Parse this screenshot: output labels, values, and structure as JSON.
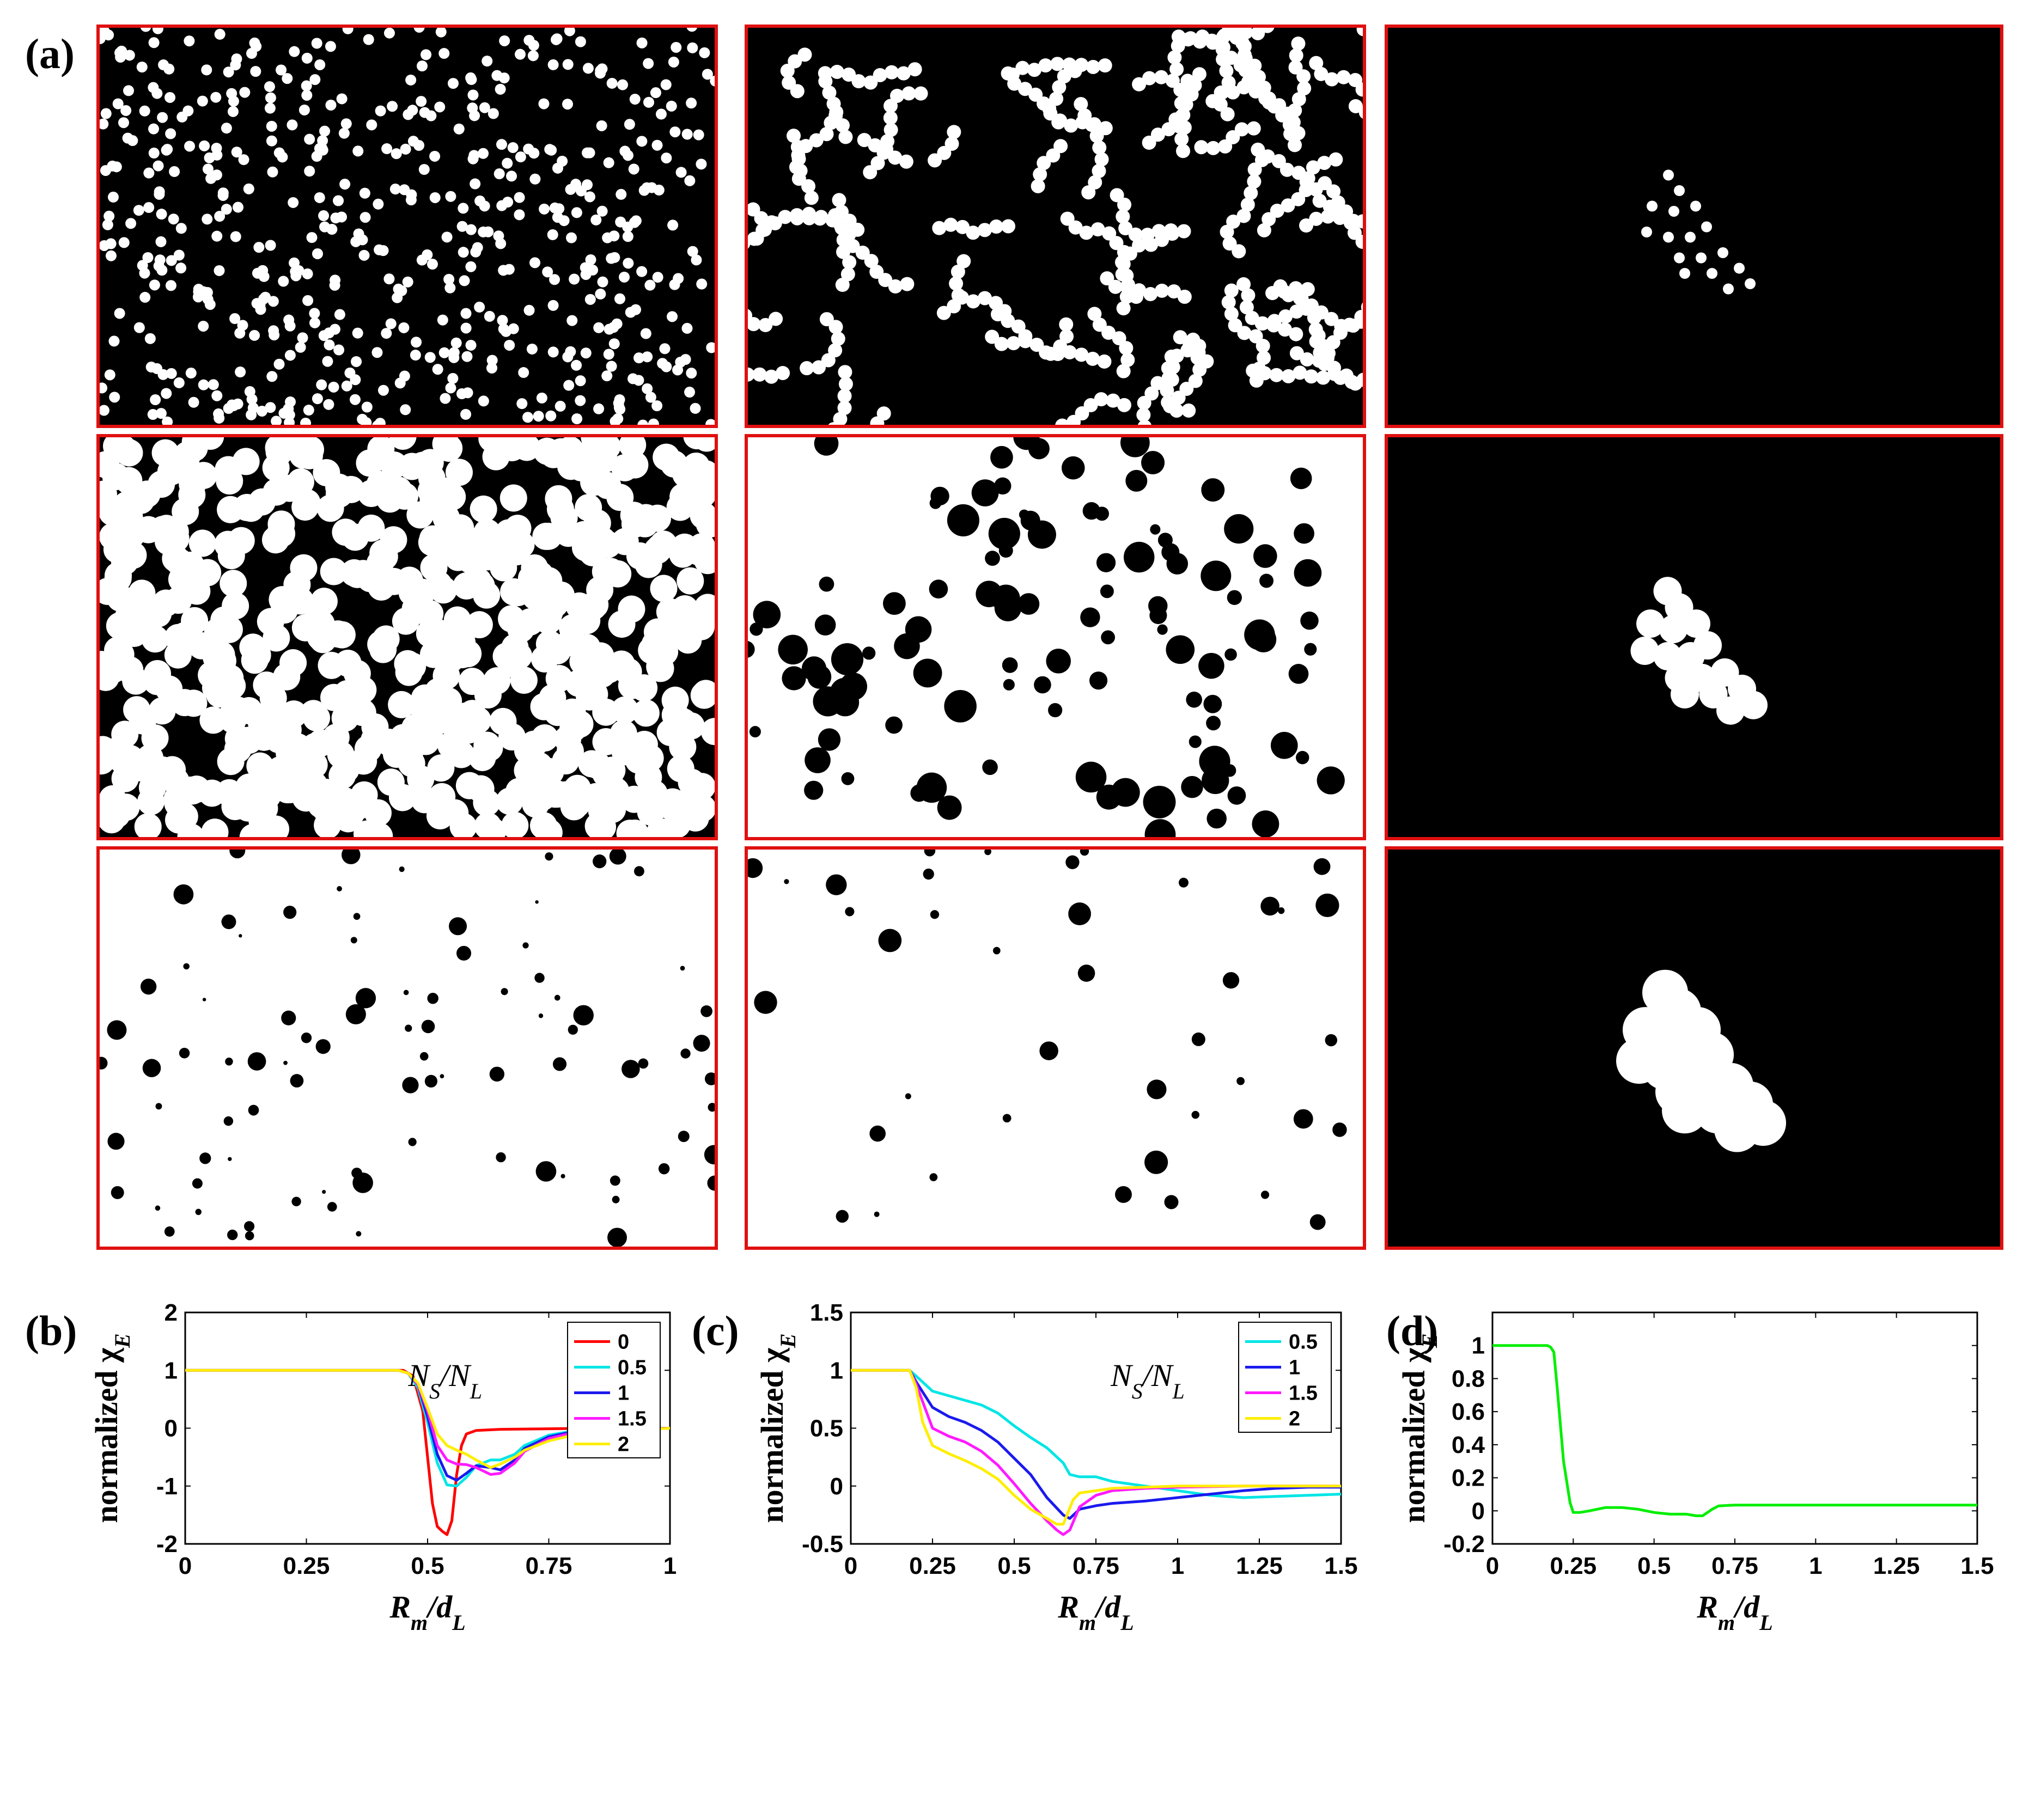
{
  "panel_labels": {
    "a": "(a)",
    "b": "(b)",
    "c": "(c)",
    "d": "(d)"
  },
  "image_grid": {
    "frame_color": "#e01010",
    "rows": 3,
    "cols": 3,
    "panels": [
      {
        "row": 0,
        "col": 0,
        "bg": "#000000",
        "fg": "#ffffff",
        "content": "sparse-dots",
        "seed": 11
      },
      {
        "row": 0,
        "col": 1,
        "bg": "#000000",
        "fg": "#ffffff",
        "content": "chains",
        "seed": 23
      },
      {
        "row": 0,
        "col": 2,
        "bg": "#000000",
        "fg": "#ffffff",
        "content": "cluster-small",
        "seed": 5
      },
      {
        "row": 1,
        "col": 0,
        "bg": "#000000",
        "fg": "#ffffff",
        "content": "dense-disks",
        "seed": 37
      },
      {
        "row": 1,
        "col": 1,
        "bg": "#000000",
        "fg": "#ffffff",
        "content": "merged-network",
        "seed": 41
      },
      {
        "row": 1,
        "col": 2,
        "bg": "#000000",
        "fg": "#ffffff",
        "content": "cluster-medium",
        "seed": 5
      },
      {
        "row": 2,
        "col": 0,
        "bg": "#ffffff",
        "fg": "#000000",
        "content": "sparse-holes-many",
        "seed": 53
      },
      {
        "row": 2,
        "col": 1,
        "bg": "#ffffff",
        "fg": "#000000",
        "content": "sparse-holes-few",
        "seed": 67
      },
      {
        "row": 2,
        "col": 2,
        "bg": "#000000",
        "fg": "#ffffff",
        "content": "cluster-large",
        "seed": 5
      }
    ]
  },
  "chart_data": [
    {
      "id": "b",
      "type": "line",
      "xlabel_main": "R",
      "xlabel_sub1": "m",
      "xlabel_sep": "/d",
      "xlabel_sub2": "L",
      "ylabel_main": "normalized χ",
      "ylabel_sub": "E",
      "annotation": "N_S/N_L",
      "annotation_parts": {
        "a": "N",
        "as": "S",
        "sep": "/N",
        "bs": "L"
      },
      "xlim": [
        0,
        1
      ],
      "ylim": [
        -2,
        2
      ],
      "xticks": [
        "0",
        "0.25",
        "0.5",
        "0.75",
        "1"
      ],
      "xtick_values": [
        0,
        0.25,
        0.5,
        0.75,
        1
      ],
      "yticks": [
        "-2",
        "-1",
        "0",
        "1",
        "2"
      ],
      "ytick_values": [
        -2,
        -1,
        0,
        1,
        2
      ],
      "legend_position": "top-right",
      "series": [
        {
          "name": "0",
          "color": "#ff0000",
          "x": [
            0,
            0.45,
            0.47,
            0.49,
            0.5,
            0.51,
            0.52,
            0.53,
            0.54,
            0.55,
            0.56,
            0.57,
            0.58,
            0.6,
            0.65,
            0.75,
            0.85,
            1.0
          ],
          "y": [
            1,
            1,
            0.9,
            0.3,
            -0.5,
            -1.3,
            -1.7,
            -1.78,
            -1.84,
            -1.6,
            -0.8,
            -0.3,
            -0.1,
            -0.04,
            -0.02,
            -0.01,
            0,
            0
          ]
        },
        {
          "name": "0.5",
          "color": "#00e5e5",
          "x": [
            0,
            0.44,
            0.46,
            0.48,
            0.5,
            0.52,
            0.54,
            0.56,
            0.58,
            0.6,
            0.63,
            0.65,
            0.68,
            0.7,
            0.75,
            0.8,
            0.9,
            1.0
          ],
          "y": [
            1,
            1,
            0.95,
            0.7,
            0.1,
            -0.6,
            -0.98,
            -1.0,
            -0.85,
            -0.65,
            -0.55,
            -0.55,
            -0.45,
            -0.3,
            -0.12,
            -0.05,
            -0.01,
            0
          ]
        },
        {
          "name": "1",
          "color": "#1a1aee",
          "x": [
            0,
            0.44,
            0.46,
            0.48,
            0.5,
            0.52,
            0.54,
            0.56,
            0.58,
            0.6,
            0.63,
            0.65,
            0.68,
            0.7,
            0.75,
            0.8,
            0.9,
            1.0
          ],
          "y": [
            1,
            1,
            0.95,
            0.75,
            0.2,
            -0.45,
            -0.82,
            -0.9,
            -0.78,
            -0.65,
            -0.68,
            -0.72,
            -0.55,
            -0.35,
            -0.15,
            -0.06,
            -0.01,
            0
          ]
        },
        {
          "name": "1.5",
          "color": "#ff1aff",
          "x": [
            0,
            0.44,
            0.46,
            0.48,
            0.5,
            0.52,
            0.54,
            0.56,
            0.58,
            0.6,
            0.63,
            0.65,
            0.68,
            0.7,
            0.75,
            0.8,
            0.9,
            1.0
          ],
          "y": [
            1,
            1,
            0.95,
            0.75,
            0.3,
            -0.3,
            -0.55,
            -0.62,
            -0.63,
            -0.68,
            -0.8,
            -0.78,
            -0.6,
            -0.4,
            -0.18,
            -0.08,
            -0.02,
            0
          ]
        },
        {
          "name": "2",
          "color": "#ffee00",
          "x": [
            0,
            0.44,
            0.46,
            0.48,
            0.5,
            0.52,
            0.54,
            0.56,
            0.58,
            0.6,
            0.63,
            0.65,
            0.68,
            0.7,
            0.75,
            0.8,
            0.9,
            1.0
          ],
          "y": [
            1,
            1,
            0.95,
            0.78,
            0.35,
            -0.1,
            -0.3,
            -0.38,
            -0.45,
            -0.55,
            -0.68,
            -0.62,
            -0.5,
            -0.38,
            -0.22,
            -0.12,
            -0.04,
            0
          ]
        }
      ]
    },
    {
      "id": "c",
      "type": "line",
      "xlabel_main": "R",
      "xlabel_sub1": "m",
      "xlabel_sep": "/d",
      "xlabel_sub2": "L",
      "ylabel_main": "normalized χ",
      "ylabel_sub": "E",
      "annotation": "N_S/N_L",
      "annotation_parts": {
        "a": "N",
        "as": "S",
        "sep": "/N",
        "bs": "L"
      },
      "xlim": [
        0,
        1.5
      ],
      "ylim": [
        -0.5,
        1.5
      ],
      "xticks": [
        "0",
        "0.25",
        "0.5",
        "0.75",
        "1",
        "1.25",
        "1.5"
      ],
      "xtick_values": [
        0,
        0.25,
        0.5,
        0.75,
        1,
        1.25,
        1.5
      ],
      "yticks": [
        "-0.5",
        "0",
        "0.5",
        "1",
        "1.5"
      ],
      "ytick_values": [
        -0.5,
        0,
        0.5,
        1,
        1.5
      ],
      "legend_position": "top-right",
      "series": [
        {
          "name": "0.5",
          "color": "#00e5e5",
          "x": [
            0,
            0.18,
            0.2,
            0.25,
            0.3,
            0.4,
            0.45,
            0.5,
            0.55,
            0.6,
            0.65,
            0.67,
            0.7,
            0.75,
            0.8,
            0.9,
            1.0,
            1.1,
            1.2,
            1.3,
            1.4,
            1.5
          ],
          "y": [
            1,
            1,
            0.95,
            0.82,
            0.78,
            0.7,
            0.63,
            0.52,
            0.42,
            0.33,
            0.2,
            0.1,
            0.08,
            0.08,
            0.04,
            0.0,
            -0.04,
            -0.08,
            -0.1,
            -0.09,
            -0.08,
            -0.07
          ]
        },
        {
          "name": "1",
          "color": "#1a1aee",
          "x": [
            0,
            0.18,
            0.2,
            0.25,
            0.3,
            0.35,
            0.4,
            0.45,
            0.5,
            0.55,
            0.6,
            0.65,
            0.67,
            0.7,
            0.75,
            0.8,
            0.9,
            1.0,
            1.1,
            1.2,
            1.3,
            1.4,
            1.5
          ],
          "y": [
            1,
            1,
            0.9,
            0.68,
            0.6,
            0.55,
            0.48,
            0.38,
            0.24,
            0.1,
            -0.1,
            -0.25,
            -0.28,
            -0.2,
            -0.17,
            -0.15,
            -0.13,
            -0.1,
            -0.07,
            -0.04,
            -0.02,
            -0.01,
            -0.01
          ]
        },
        {
          "name": "1.5",
          "color": "#ff1aff",
          "x": [
            0,
            0.18,
            0.2,
            0.25,
            0.3,
            0.35,
            0.4,
            0.45,
            0.5,
            0.55,
            0.6,
            0.63,
            0.65,
            0.67,
            0.7,
            0.75,
            0.8,
            0.9,
            1.0,
            1.2,
            1.5
          ],
          "y": [
            1,
            1,
            0.88,
            0.5,
            0.43,
            0.38,
            0.3,
            0.18,
            0.02,
            -0.15,
            -0.3,
            -0.38,
            -0.42,
            -0.38,
            -0.18,
            -0.08,
            -0.04,
            -0.02,
            -0.01,
            0,
            0
          ]
        },
        {
          "name": "2",
          "color": "#ffee00",
          "x": [
            0,
            0.18,
            0.2,
            0.22,
            0.25,
            0.3,
            0.35,
            0.4,
            0.45,
            0.5,
            0.55,
            0.6,
            0.63,
            0.65,
            0.68,
            0.7,
            0.75,
            0.8,
            0.9,
            1.0,
            1.2,
            1.5
          ],
          "y": [
            1,
            1,
            0.85,
            0.55,
            0.35,
            0.28,
            0.22,
            0.15,
            0.06,
            -0.08,
            -0.2,
            -0.28,
            -0.33,
            -0.33,
            -0.12,
            -0.06,
            -0.04,
            -0.02,
            -0.01,
            0,
            0,
            0
          ]
        }
      ]
    },
    {
      "id": "d",
      "type": "line",
      "xlabel_main": "R",
      "xlabel_sub1": "m",
      "xlabel_sep": "/d",
      "xlabel_sub2": "L",
      "ylabel_main": "normalized χ",
      "ylabel_sub": "E",
      "xlim": [
        0,
        1.5
      ],
      "ylim": [
        -0.2,
        1.2
      ],
      "xticks": [
        "0",
        "0.25",
        "0.5",
        "0.75",
        "1",
        "1.25",
        "1.5"
      ],
      "xtick_values": [
        0,
        0.25,
        0.5,
        0.75,
        1,
        1.25,
        1.5
      ],
      "yticks": [
        "-0.2",
        "0",
        "0.2",
        "0.4",
        "0.6",
        "0.8",
        "1"
      ],
      "ytick_values": [
        -0.2,
        0,
        0.2,
        0.4,
        0.6,
        0.8,
        1
      ],
      "series": [
        {
          "name": "",
          "color": "#00ee00",
          "x": [
            0,
            0.17,
            0.18,
            0.19,
            0.2,
            0.22,
            0.24,
            0.25,
            0.27,
            0.3,
            0.35,
            0.4,
            0.45,
            0.5,
            0.55,
            0.6,
            0.63,
            0.65,
            0.68,
            0.7,
            0.75,
            0.8,
            1.0,
            1.25,
            1.5
          ],
          "y": [
            1,
            1,
            0.99,
            0.96,
            0.75,
            0.3,
            0.05,
            -0.01,
            -0.01,
            0.0,
            0.02,
            0.02,
            0.01,
            -0.01,
            -0.02,
            -0.02,
            -0.03,
            -0.03,
            0.01,
            0.03,
            0.035,
            0.035,
            0.035,
            0.035,
            0.035
          ]
        }
      ]
    }
  ]
}
